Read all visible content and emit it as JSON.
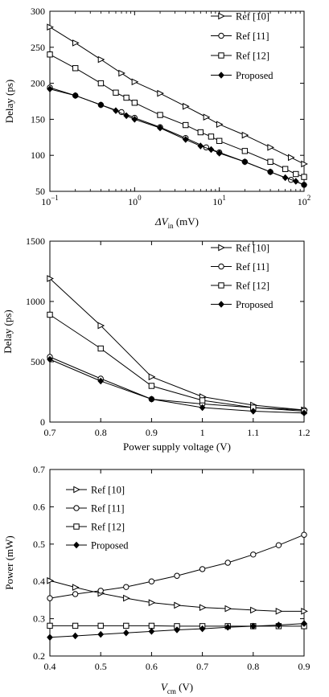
{
  "chart_data": [
    {
      "type": "line",
      "xscale": "log",
      "xlabel": "ΔV",
      "xlabel_sub": "in",
      "xlabel_unit": " (mV)",
      "ylabel": "Delay (ps)",
      "xlim": [
        0.1,
        100
      ],
      "ylim": [
        50,
        300
      ],
      "xtick_values": [
        0.1,
        1,
        10,
        100
      ],
      "xtick_labels": [
        {
          "base": "10",
          "exp": "−1"
        },
        {
          "base": "10",
          "exp": "0"
        },
        {
          "base": "10",
          "exp": "1"
        },
        {
          "base": "10",
          "exp": "2"
        }
      ],
      "ytick_values": [
        50,
        100,
        150,
        200,
        250,
        300
      ],
      "ytick_labels": [
        "50",
        "100",
        "150",
        "200",
        "250",
        "300"
      ],
      "legend_position": "top-right",
      "grid": false,
      "series": [
        {
          "name": "Ref [10]",
          "marker": "triangle-right",
          "x": [
            0.1,
            0.2,
            0.4,
            0.7,
            1,
            2,
            4,
            7,
            10,
            20,
            40,
            70,
            100
          ],
          "values": [
            278,
            256,
            233,
            214,
            202,
            186,
            168,
            153,
            143,
            128,
            111,
            97,
            88
          ]
        },
        {
          "name": "Ref [11]",
          "marker": "circle",
          "x": [
            0.1,
            0.2,
            0.4,
            0.7,
            1,
            2,
            4,
            7,
            10,
            20,
            40,
            70,
            100
          ],
          "values": [
            194,
            183,
            170,
            160,
            152,
            139,
            124,
            111,
            104,
            91,
            77,
            66,
            59
          ]
        },
        {
          "name": "Ref [12]",
          "marker": "square",
          "x": [
            0.1,
            0.2,
            0.4,
            0.6,
            0.8,
            1,
            2,
            4,
            6,
            8,
            10,
            20,
            40,
            60,
            80,
            100
          ],
          "values": [
            240,
            221,
            200,
            187,
            180,
            173,
            156,
            142,
            132,
            126,
            120,
            106,
            91,
            81,
            74,
            70
          ]
        },
        {
          "name": "Proposed",
          "marker": "diamond",
          "x": [
            0.1,
            0.2,
            0.4,
            0.6,
            0.8,
            1,
            2,
            4,
            6,
            8,
            10,
            20,
            40,
            60,
            80,
            100
          ],
          "values": [
            192,
            183,
            170,
            162,
            155,
            150,
            138,
            122,
            113,
            108,
            103,
            91,
            77,
            69,
            64,
            59
          ]
        }
      ]
    },
    {
      "type": "line",
      "xscale": "linear",
      "xlabel": "Power supply voltage (V)",
      "ylabel": "Delay (ps)",
      "xlim": [
        0.7,
        1.2
      ],
      "ylim": [
        0,
        1500
      ],
      "xtick_values": [
        0.7,
        0.8,
        0.9,
        1,
        1.1,
        1.2
      ],
      "xtick_labels": [
        "0.7",
        "0.8",
        "0.9",
        "1",
        "1.1",
        "1.2"
      ],
      "ytick_values": [
        0,
        500,
        1000,
        1500
      ],
      "ytick_labels": [
        "0",
        "500",
        "1000",
        "1500"
      ],
      "legend_position": "top-right",
      "grid": false,
      "series": [
        {
          "name": "Ref [10]",
          "marker": "triangle-right",
          "x": [
            0.7,
            0.8,
            0.9,
            1.0,
            1.1,
            1.2
          ],
          "values": [
            1190,
            800,
            375,
            210,
            140,
            100
          ]
        },
        {
          "name": "Ref [11]",
          "marker": "circle",
          "x": [
            0.7,
            0.8,
            0.9,
            1.0,
            1.1,
            1.2
          ],
          "values": [
            540,
            360,
            190,
            150,
            120,
            100
          ]
        },
        {
          "name": "Ref [12]",
          "marker": "square",
          "x": [
            0.7,
            0.8,
            0.9,
            1.0,
            1.1,
            1.2
          ],
          "values": [
            890,
            610,
            300,
            180,
            120,
            90
          ]
        },
        {
          "name": "Proposed",
          "marker": "diamond",
          "x": [
            0.7,
            0.8,
            0.9,
            1.0,
            1.1,
            1.2
          ],
          "values": [
            520,
            340,
            190,
            120,
            90,
            75
          ]
        }
      ]
    },
    {
      "type": "line",
      "xscale": "linear",
      "xlabel": "V",
      "xlabel_sub": "cm",
      "xlabel_unit": " (V)",
      "ylabel": "Power (mW)",
      "xlim": [
        0.4,
        0.9
      ],
      "ylim": [
        0.2,
        0.7
      ],
      "xtick_values": [
        0.4,
        0.5,
        0.6,
        0.7,
        0.8,
        0.9
      ],
      "xtick_labels": [
        "0.4",
        "0.5",
        "0.6",
        "0.7",
        "0.8",
        "0.9"
      ],
      "ytick_values": [
        0.2,
        0.3,
        0.4,
        0.5,
        0.6,
        0.7
      ],
      "ytick_labels": [
        "0.2",
        "0.3",
        "0.4",
        "0.5",
        "0.6",
        "0.7"
      ],
      "legend_position": "top-left",
      "grid": false,
      "series": [
        {
          "name": "Ref [10]",
          "marker": "triangle-right",
          "x": [
            0.4,
            0.45,
            0.5,
            0.55,
            0.6,
            0.65,
            0.7,
            0.75,
            0.8,
            0.85,
            0.9
          ],
          "values": [
            0.402,
            0.384,
            0.368,
            0.355,
            0.343,
            0.336,
            0.33,
            0.327,
            0.323,
            0.32,
            0.32
          ]
        },
        {
          "name": "Ref [11]",
          "marker": "circle",
          "x": [
            0.4,
            0.45,
            0.5,
            0.55,
            0.6,
            0.65,
            0.7,
            0.75,
            0.8,
            0.85,
            0.9
          ],
          "values": [
            0.355,
            0.366,
            0.375,
            0.385,
            0.4,
            0.415,
            0.433,
            0.45,
            0.472,
            0.497,
            0.525
          ]
        },
        {
          "name": "Ref [12]",
          "marker": "square",
          "x": [
            0.4,
            0.45,
            0.5,
            0.55,
            0.6,
            0.65,
            0.7,
            0.75,
            0.8,
            0.85,
            0.9
          ],
          "values": [
            0.281,
            0.281,
            0.281,
            0.281,
            0.281,
            0.28,
            0.28,
            0.28,
            0.28,
            0.28,
            0.28
          ]
        },
        {
          "name": "Proposed",
          "marker": "diamond",
          "x": [
            0.4,
            0.45,
            0.5,
            0.55,
            0.6,
            0.65,
            0.7,
            0.75,
            0.8,
            0.85,
            0.9
          ],
          "values": [
            0.25,
            0.254,
            0.258,
            0.262,
            0.266,
            0.27,
            0.273,
            0.277,
            0.28,
            0.283,
            0.287
          ]
        }
      ]
    }
  ]
}
